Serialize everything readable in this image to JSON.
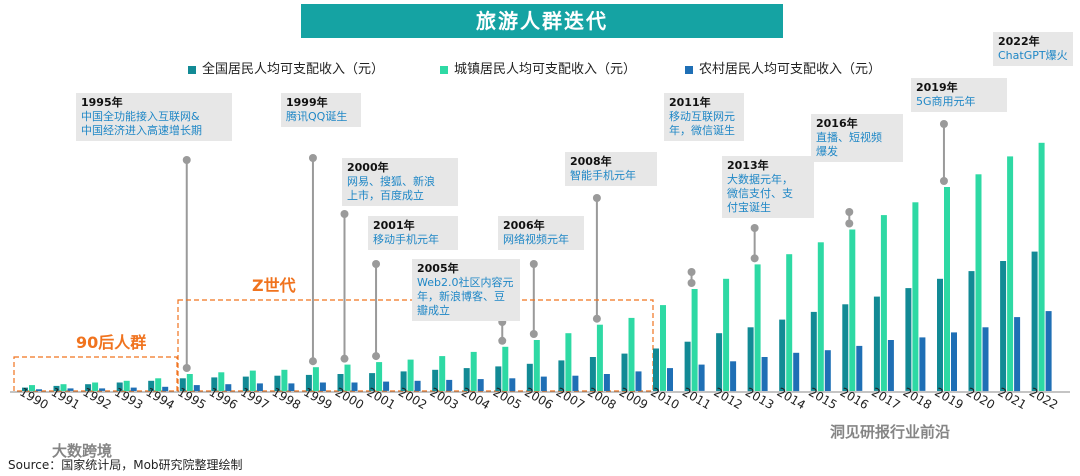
{
  "title": "旅游人群迭代",
  "chart_data": {
    "type": "bar",
    "categories": [
      "1990",
      "1991",
      "1992",
      "1993",
      "1994",
      "1995",
      "1996",
      "1997",
      "1998",
      "1999",
      "2000",
      "2001",
      "2002",
      "2003",
      "2004",
      "2005",
      "2006",
      "2007",
      "2008",
      "2009",
      "2010",
      "2011",
      "2012",
      "2013",
      "2014",
      "2015",
      "2016",
      "2017",
      "2018",
      "2019",
      "2020",
      "2021",
      "2022"
    ],
    "series": [
      {
        "name": "全国居民人均可支配收入（元）",
        "color": "#128a95",
        "values": [
          4,
          6,
          8,
          10,
          12,
          15,
          16,
          17,
          18,
          19,
          20,
          21,
          23,
          25,
          27,
          29,
          32,
          36,
          40,
          44,
          50,
          58,
          68,
          75,
          84,
          93,
          102,
          111,
          121,
          132,
          141,
          153,
          164
        ]
      },
      {
        "name": "城镇居民人均可支配收入（元）",
        "color": "#2ed9a4",
        "values": [
          7,
          8,
          10,
          12,
          15,
          20,
          22,
          24,
          25,
          28,
          31,
          34,
          37,
          41,
          46,
          52,
          60,
          68,
          78,
          86,
          101,
          120,
          132,
          149,
          161,
          175,
          190,
          207,
          222,
          240,
          255,
          276,
          292
        ]
      },
      {
        "name": "农村居民人均可支配收入（元）",
        "color": "#1f6fb5",
        "values": [
          2,
          3,
          3,
          4,
          5,
          7,
          8,
          9,
          9,
          10,
          10,
          11,
          12,
          13,
          14,
          15,
          17,
          18,
          20,
          23,
          27,
          31,
          35,
          40,
          45,
          48,
          53,
          60,
          63,
          69,
          75,
          87,
          94
        ]
      }
    ],
    "xlabel": "",
    "ylabel": "",
    "ylim": [
      0,
      300
    ]
  },
  "annotations": [
    {
      "year": "1995年",
      "text": "中国全功能接入互联网&\n中国经济进入高速增长期"
    },
    {
      "year": "1999年",
      "text": "腾讯QQ诞生"
    },
    {
      "year": "2000年",
      "text": "网易、搜狐、新浪\n上市，百度成立"
    },
    {
      "year": "2001年",
      "text": "移动手机元年"
    },
    {
      "year": "2005年",
      "text": "Web2.0社区内容元\n年，新浪博客、豆\n瓣成立"
    },
    {
      "year": "2006年",
      "text": "网络视频元年"
    },
    {
      "year": "2008年",
      "text": "智能手机元年"
    },
    {
      "year": "2011年",
      "text": "移动互联网元\n年，微信诞生"
    },
    {
      "year": "2013年",
      "text": "大数据元年，\n微信支付、支\n付宝诞生"
    },
    {
      "year": "2016年",
      "text": "直播、短视频\n爆发"
    },
    {
      "year": "2019年",
      "text": "5G商用元年"
    },
    {
      "year": "2022年",
      "text": "ChatGPT爆火"
    }
  ],
  "groups": {
    "post90": "90后人群",
    "genz": "Z世代"
  },
  "source": "Source：国家统计局，Mob研究院整理绘制",
  "watermarks": {
    "left": "大数跨境",
    "right": "洞见研报行业前沿"
  },
  "colors": {
    "banner": "#15a3a3",
    "group_label": "#f0731e",
    "annotation_text": "#1f87c6"
  }
}
